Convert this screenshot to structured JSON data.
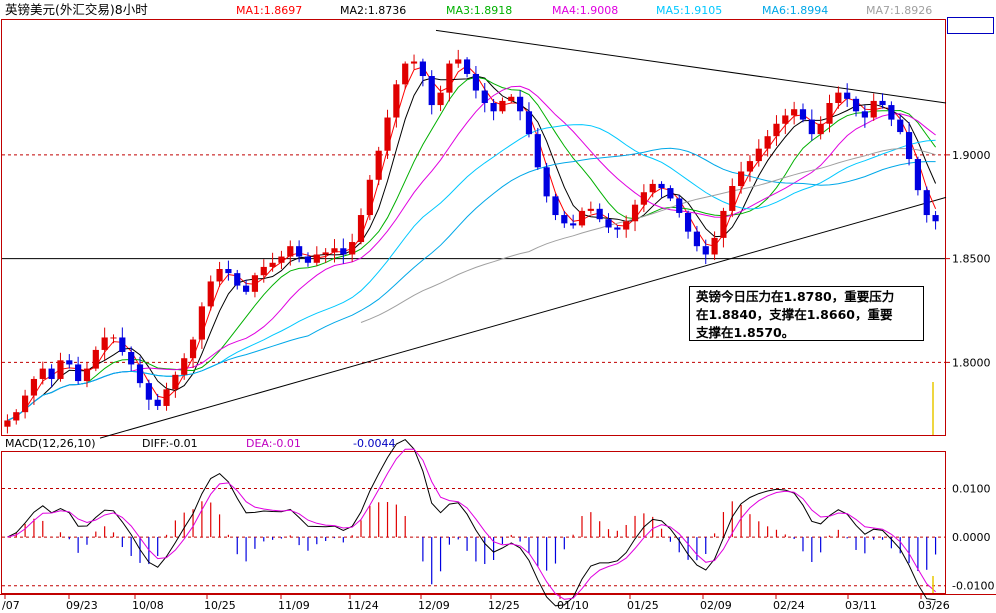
{
  "chart_data": [
    {
      "type": "candlestick",
      "title": "英镑美元(外汇交易)8小时",
      "ma_legend": [
        {
          "label": "MA1:1.8697",
          "color": "#ff0000"
        },
        {
          "label": "MA2:1.8736",
          "color": "#000000"
        },
        {
          "label": "MA3:1.8918",
          "color": "#00b000"
        },
        {
          "label": "MA4:1.9008",
          "color": "#e000e0"
        },
        {
          "label": "MA5:1.9105",
          "color": "#00c8ff"
        },
        {
          "label": "MA6:1.8994",
          "color": "#00a8e8"
        },
        {
          "label": "MA7:1.8926",
          "color": "#a0a0a0"
        }
      ],
      "y_ticks": [
        "1.9000",
        "1.8500",
        "1.8000"
      ],
      "ylim": [
        1.765,
        1.965
      ],
      "x_ticks": [
        "/07",
        "09/23",
        "10/08",
        "10/25",
        "11/09",
        "11/24",
        "12/09",
        "12/25",
        "01/10",
        "01/25",
        "02/09",
        "02/24",
        "03/11",
        "03/26"
      ],
      "grid": "dashed horizontal",
      "support_level": 1.85,
      "trend_lines": [
        {
          "from": [
            "09/15",
            1.7635
          ],
          "to": [
            "03/28",
            1.8795
          ]
        },
        {
          "from": [
            "12/14",
            1.96
          ],
          "to": [
            "03/28",
            1.925
          ]
        }
      ],
      "closes": [
        1.772,
        1.776,
        1.784,
        1.792,
        1.797,
        1.792,
        1.801,
        1.799,
        1.791,
        1.797,
        1.806,
        1.812,
        1.812,
        1.805,
        1.799,
        1.79,
        1.782,
        1.779,
        1.787,
        1.794,
        1.802,
        1.811,
        1.827,
        1.839,
        1.845,
        1.843,
        1.837,
        1.834,
        1.842,
        1.846,
        1.848,
        1.851,
        1.856,
        1.851,
        1.848,
        1.852,
        1.853,
        1.855,
        1.852,
        1.858,
        1.871,
        1.888,
        1.902,
        1.918,
        1.934,
        1.944,
        1.945,
        1.938,
        1.924,
        1.93,
        1.944,
        1.946,
        1.939,
        1.931,
        1.925,
        1.921,
        1.926,
        1.928,
        1.921,
        1.91,
        1.894,
        1.88,
        1.871,
        1.867,
        1.866,
        1.873,
        1.874,
        1.869,
        1.865,
        1.864,
        1.868,
        1.876,
        1.882,
        1.886,
        1.884,
        1.879,
        1.872,
        1.863,
        1.856,
        1.852,
        1.86,
        1.873,
        1.885,
        1.892,
        1.897,
        1.903,
        1.909,
        1.915,
        1.919,
        1.922,
        1.917,
        1.91,
        1.915,
        1.925,
        1.93,
        1.927,
        1.921,
        1.918,
        1.926,
        1.924,
        1.917,
        1.911,
        1.898,
        1.883,
        1.871,
        1.868
      ],
      "annotation": [
        "英镑今日压力在1.8780，重要压力",
        "在1.8840，支撑在1.8660，重要",
        "支撑在1.8570。"
      ],
      "volume_marker_color": "#e8c800"
    },
    {
      "type": "macd",
      "title": "MACD(12,26,10)",
      "diff_label": "DIFF:-0.01",
      "dea_label": "DEA:-0.01",
      "macd_label": "-0.0044",
      "y_ticks": [
        "0.0100",
        "0.0000",
        "-0.0100"
      ],
      "ylim": [
        -0.0115,
        0.0175
      ],
      "grid": "dashed horizontal",
      "colors": {
        "diff": "#000000",
        "dea": "#e000e0",
        "hist_up": "#e00000",
        "hist_down": "#0000e0"
      }
    }
  ]
}
